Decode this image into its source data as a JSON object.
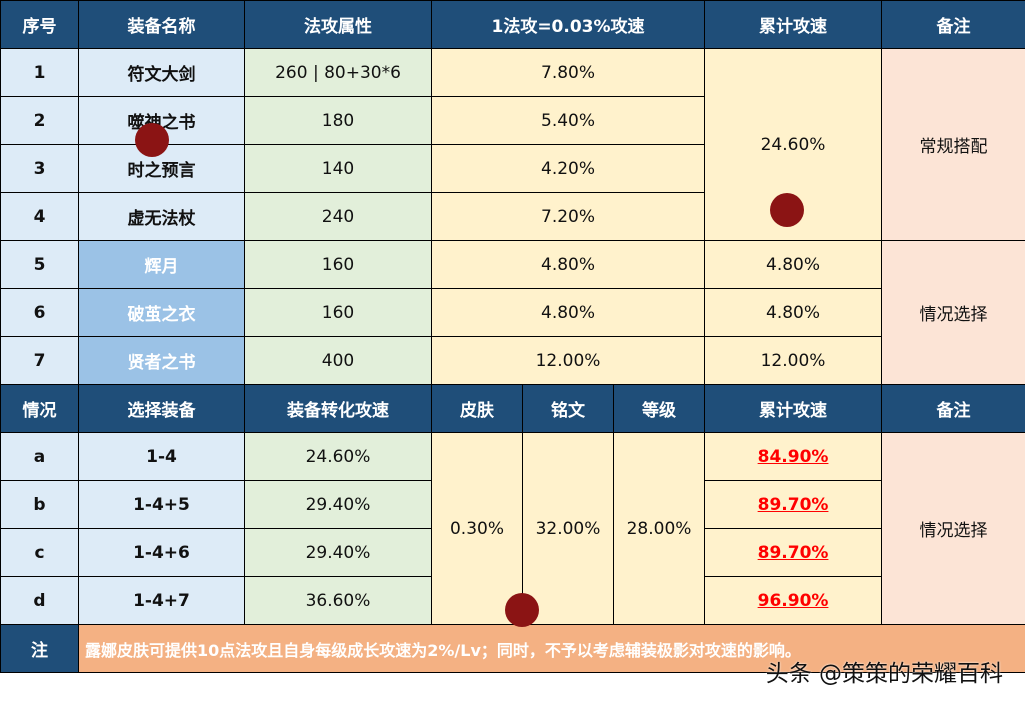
{
  "top_headers": [
    "序号",
    "装备名称",
    "法攻属性",
    "1法攻=0.03%攻速",
    "累计攻速",
    "备注"
  ],
  "items": [
    {
      "no": "1",
      "name": "符文大剑",
      "magic": "260 | 80+30*6",
      "speed": "7.80%"
    },
    {
      "no": "2",
      "name": "噬神之书",
      "magic": "180",
      "speed": "5.40%"
    },
    {
      "no": "3",
      "name": "时之预言",
      "magic": "140",
      "speed": "4.20%"
    },
    {
      "no": "4",
      "name": "虚无法杖",
      "magic": "240",
      "speed": "7.20%"
    },
    {
      "no": "5",
      "name": "辉月",
      "magic": "160",
      "speed": "4.80%",
      "total": "4.80%"
    },
    {
      "no": "6",
      "name": "破茧之衣",
      "magic": "160",
      "speed": "4.80%",
      "total": "4.80%"
    },
    {
      "no": "7",
      "name": "贤者之书",
      "magic": "400",
      "speed": "12.00%",
      "total": "12.00%"
    }
  ],
  "group_total": "24.60%",
  "remark_regular": "常规搭配",
  "remark_situational": "情况选择",
  "bottom_headers": [
    "情况",
    "选择装备",
    "装备转化攻速",
    "皮肤",
    "铭文",
    "等级",
    "累计攻速",
    "备注"
  ],
  "cases": [
    {
      "id": "a",
      "items": "1-4",
      "convert": "24.60%",
      "total": "84.90%"
    },
    {
      "id": "b",
      "items": "1-4+5",
      "convert": "29.40%",
      "total": "89.70%"
    },
    {
      "id": "c",
      "items": "1-4+6",
      "convert": "29.40%",
      "total": "89.70%"
    },
    {
      "id": "d",
      "items": "1-4+7",
      "convert": "36.60%",
      "total": "96.90%"
    }
  ],
  "skin": "0.30%",
  "rune": "32.00%",
  "level": "28.00%",
  "bottom_remark": "情况选择",
  "note_label": "注",
  "note_text": "露娜皮肤可提供10点法攻且自身每级成长攻速为2%/Lv；同时，不予以考虑辅装极影对攻速的影响。",
  "watermark": "策策的荣耀百科",
  "source_credit": "头条 @策策的荣耀百科",
  "colors": {
    "header": "#1f4e79",
    "highlight": "#ff0000",
    "note_bg": "#f4b183"
  }
}
